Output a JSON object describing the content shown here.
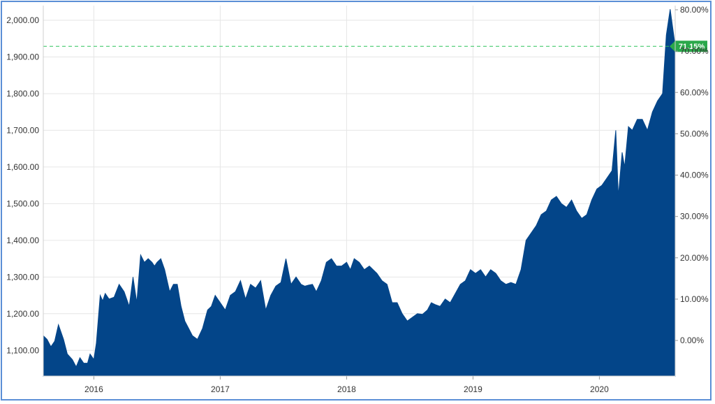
{
  "chart_data": {
    "type": "area",
    "title": "",
    "xlabel": "",
    "ylabel": "",
    "colors": {
      "area": "#034589",
      "grid": "#e6e6e6",
      "reference_line": "#2ec45c",
      "badge": "#2aa84a"
    },
    "x_range": [
      2015.6,
      2020.6
    ],
    "ylim": [
      1030,
      2040
    ],
    "y_ticks": [
      1100,
      1200,
      1300,
      1400,
      1500,
      1600,
      1700,
      1800,
      1900,
      2000
    ],
    "y_tick_labels": [
      "1,100.00",
      "1,200.00",
      "1,300.00",
      "1,400.00",
      "1,500.00",
      "1,600.00",
      "1,700.00",
      "1,800.00",
      "1,900.00",
      "2,000.00"
    ],
    "x_ticks": [
      2016,
      2017,
      2018,
      2019,
      2020
    ],
    "x_tick_labels": [
      "2016",
      "2017",
      "2018",
      "2019",
      "2020"
    ],
    "secondary_axis": {
      "labels": [
        "0.00%",
        "10.00%",
        "20.00%",
        "30.00%",
        "40.00%",
        "50.00%",
        "60.00%",
        "70.00%",
        "80.00%"
      ],
      "values": [
        0,
        10,
        20,
        30,
        40,
        50,
        60,
        70,
        80
      ],
      "base_price": 1127
    },
    "reference_line": {
      "value": 1929,
      "label": "71.15%"
    },
    "grid": true,
    "series": [
      {
        "name": "",
        "x": [
          2015.6,
          2015.63,
          2015.66,
          2015.69,
          2015.72,
          2015.76,
          2015.79,
          2015.83,
          2015.86,
          2015.89,
          2015.92,
          2015.95,
          2015.97,
          2016.0,
          2016.02,
          2016.05,
          2016.07,
          2016.09,
          2016.12,
          2016.16,
          2016.2,
          2016.24,
          2016.28,
          2016.31,
          2016.34,
          2016.37,
          2016.4,
          2016.43,
          2016.46,
          2016.48,
          2016.5,
          2016.53,
          2016.56,
          2016.6,
          2016.63,
          2016.66,
          2016.69,
          2016.72,
          2016.75,
          2016.78,
          2016.82,
          2016.86,
          2016.9,
          2016.93,
          2016.96,
          2017.0,
          2017.04,
          2017.08,
          2017.12,
          2017.16,
          2017.2,
          2017.24,
          2017.28,
          2017.32,
          2017.36,
          2017.4,
          2017.44,
          2017.48,
          2017.52,
          2017.56,
          2017.6,
          2017.64,
          2017.67,
          2017.7,
          2017.73,
          2017.76,
          2017.8,
          2017.84,
          2017.88,
          2017.92,
          2017.96,
          2018.0,
          2018.03,
          2018.06,
          2018.1,
          2018.14,
          2018.18,
          2018.21,
          2018.24,
          2018.28,
          2018.32,
          2018.36,
          2018.4,
          2018.44,
          2018.48,
          2018.52,
          2018.56,
          2018.6,
          2018.64,
          2018.67,
          2018.7,
          2018.74,
          2018.78,
          2018.82,
          2018.86,
          2018.9,
          2018.94,
          2018.98,
          2019.02,
          2019.06,
          2019.1,
          2019.14,
          2019.18,
          2019.22,
          2019.26,
          2019.3,
          2019.34,
          2019.38,
          2019.42,
          2019.44,
          2019.46,
          2019.5,
          2019.54,
          2019.58,
          2019.62,
          2019.66,
          2019.7,
          2019.74,
          2019.78,
          2019.82,
          2019.86,
          2019.9,
          2019.94,
          2019.98,
          2020.02,
          2020.06,
          2020.1,
          2020.13,
          2020.15,
          2020.18,
          2020.2,
          2020.23,
          2020.26,
          2020.3,
          2020.34,
          2020.38,
          2020.42,
          2020.46,
          2020.5,
          2020.53,
          2020.56,
          2020.58,
          2020.6
        ],
        "y": [
          1140,
          1130,
          1110,
          1125,
          1170,
          1130,
          1090,
          1075,
          1055,
          1080,
          1065,
          1065,
          1090,
          1075,
          1120,
          1250,
          1235,
          1255,
          1240,
          1245,
          1280,
          1260,
          1220,
          1300,
          1230,
          1360,
          1340,
          1350,
          1340,
          1330,
          1340,
          1350,
          1320,
          1260,
          1280,
          1280,
          1220,
          1180,
          1160,
          1140,
          1130,
          1160,
          1210,
          1220,
          1250,
          1230,
          1210,
          1250,
          1260,
          1290,
          1240,
          1280,
          1270,
          1290,
          1210,
          1250,
          1275,
          1285,
          1350,
          1280,
          1300,
          1280,
          1275,
          1278,
          1280,
          1260,
          1290,
          1340,
          1350,
          1330,
          1330,
          1340,
          1320,
          1350,
          1340,
          1320,
          1330,
          1320,
          1310,
          1290,
          1280,
          1230,
          1230,
          1200,
          1180,
          1190,
          1200,
          1198,
          1210,
          1230,
          1225,
          1220,
          1240,
          1230,
          1255,
          1280,
          1290,
          1320,
          1310,
          1320,
          1300,
          1320,
          1310,
          1290,
          1280,
          1285,
          1280,
          1320,
          1400,
          1410,
          1420,
          1440,
          1470,
          1480,
          1510,
          1520,
          1500,
          1490,
          1510,
          1480,
          1460,
          1470,
          1510,
          1540,
          1550,
          1570,
          1590,
          1700,
          1520,
          1640,
          1600,
          1710,
          1700,
          1730,
          1730,
          1700,
          1750,
          1780,
          1800,
          1960,
          2030,
          1980,
          1930
        ]
      }
    ]
  }
}
